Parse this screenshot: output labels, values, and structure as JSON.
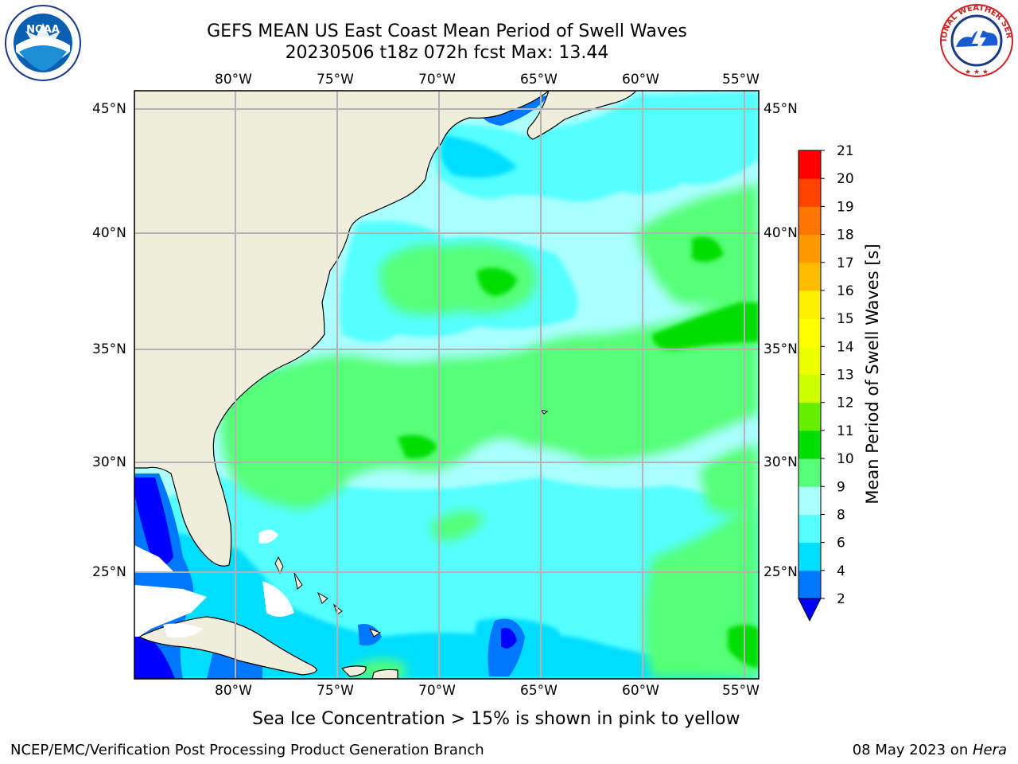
{
  "title": {
    "line1": "GEFS MEAN US East Coast Mean Period of Swell Waves",
    "line2": "20230506 t18z 072h fcst   Max: 13.44"
  },
  "map": {
    "region": "US East Coast / western North Atlantic",
    "lon_range": [
      -85,
      -54.5
    ],
    "lat_range": [
      20.5,
      45.8
    ],
    "lon_ticks": [
      "80°W",
      "75°W",
      "70°W",
      "65°W",
      "60°W",
      "55°W"
    ],
    "lat_ticks": [
      "45°N",
      "40°N",
      "35°N",
      "30°N",
      "25°N"
    ],
    "grid": true,
    "land_color": "#efeddc",
    "coastline_color": "#000000",
    "field": "mean swell wave period"
  },
  "colorbar": {
    "label": "Mean Period of Swell Waves [s]",
    "ticks": [
      "2",
      "4",
      "6",
      "8",
      "9",
      "10",
      "11",
      "12",
      "13",
      "14",
      "15",
      "16",
      "17",
      "18",
      "19",
      "20",
      "21"
    ],
    "colors": [
      "#0077ff",
      "#00ddff",
      "#55ffff",
      "#aaffff",
      "#55ff77",
      "#00dd00",
      "#66ee00",
      "#ccff00",
      "#eeff00",
      "#ffff00",
      "#ffee00",
      "#ffbb00",
      "#ff9900",
      "#ff7700",
      "#ff4400",
      "#ff0000"
    ],
    "extend_low_color": "#0000ff"
  },
  "caption": "Sea Ice Concentration > 15% is shown in pink to yellow",
  "footer": {
    "left": "NCEP/EMC/Verification Post Processing Product Generation Branch",
    "date": "08 May 2023 on ",
    "machine": "Hera"
  },
  "logos": {
    "left": "noaa-logo",
    "right": "national-weather-service-logo",
    "left_text": "NOAA",
    "right_text": "NATIONAL WEATHER SERVICE"
  }
}
